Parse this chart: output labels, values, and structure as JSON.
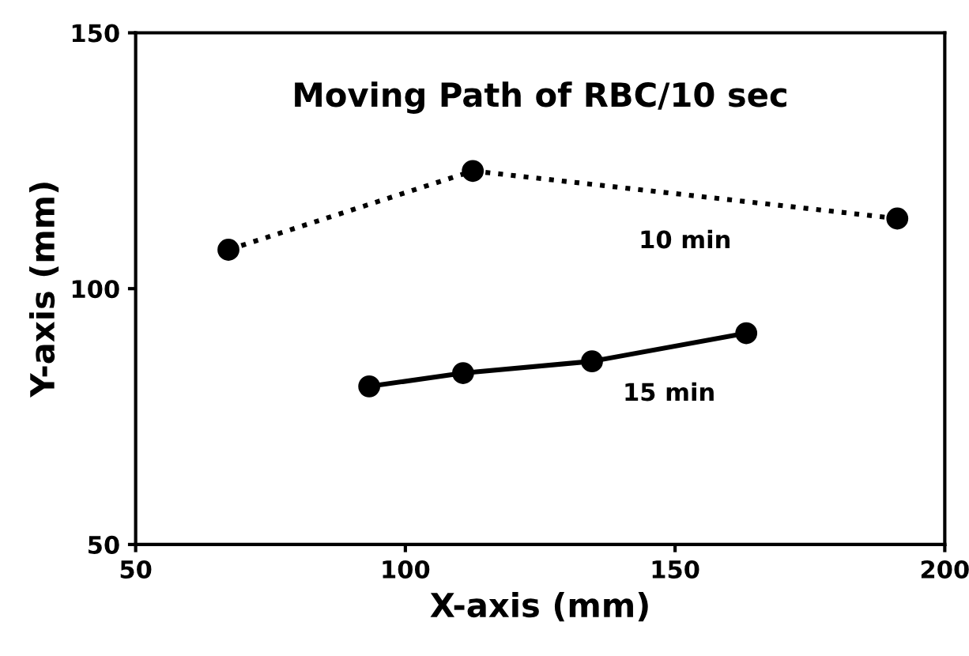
{
  "chart_data": {
    "type": "line",
    "title": "Moving Path of RBC/10 sec",
    "xlabel": "X-axis (mm)",
    "ylabel": "Y-axis (mm)",
    "xlim": [
      50,
      200
    ],
    "xticks": [
      50,
      100,
      150,
      200
    ],
    "ylim": [
      50,
      150
    ],
    "yticks": [
      50,
      100,
      150
    ],
    "marker": "circle",
    "series": [
      {
        "name": "10 min",
        "color": "#000000",
        "line_style": "dotted",
        "x": [
          191.2,
          112.5,
          67.2
        ],
        "values": [
          113.7,
          123.0,
          107.6
        ]
      },
      {
        "name": "15 min",
        "color": "#000000",
        "line_style": "solid",
        "x": [
          163.2,
          134.6,
          110.7,
          93.3
        ],
        "values": [
          91.3,
          85.8,
          83.5,
          80.9
        ]
      }
    ]
  }
}
